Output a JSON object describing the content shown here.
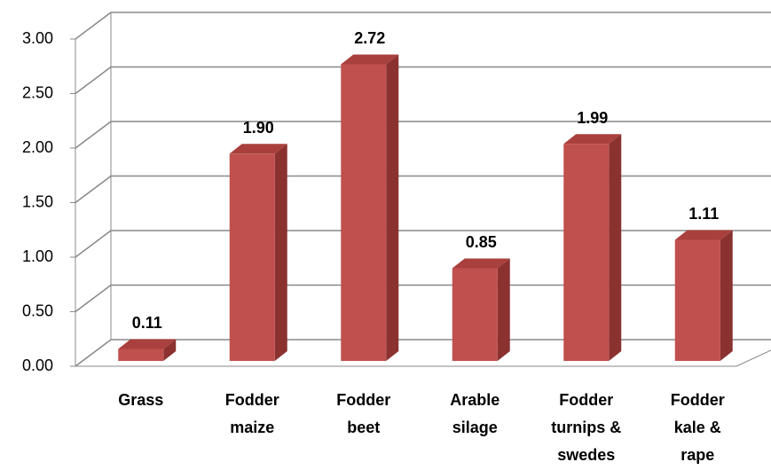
{
  "chart_data": {
    "type": "bar3d",
    "categories": [
      [
        "Grass"
      ],
      [
        "Fodder",
        "maize"
      ],
      [
        "Fodder",
        "beet"
      ],
      [
        "Arable",
        "silage"
      ],
      [
        "Fodder",
        "turnips &",
        "swedes"
      ],
      [
        "Fodder",
        "kale &",
        "rape"
      ]
    ],
    "values": [
      0.11,
      1.9,
      2.72,
      0.85,
      1.99,
      1.11
    ],
    "value_labels": [
      "0.11",
      "1.90",
      "2.72",
      "0.85",
      "1.99",
      "1.11"
    ],
    "color": "#c0504d",
    "ylim": [
      0,
      3
    ],
    "yticks": [
      {
        "value": 0,
        "label": "0.00"
      },
      {
        "value": 0.5,
        "label": "0.50"
      },
      {
        "value": 1,
        "label": "1.00"
      },
      {
        "value": 1.5,
        "label": "1.50"
      },
      {
        "value": 2,
        "label": "2.00"
      },
      {
        "value": 2.5,
        "label": "2.50"
      },
      {
        "value": 3,
        "label": "3.00"
      }
    ],
    "grid": true
  }
}
